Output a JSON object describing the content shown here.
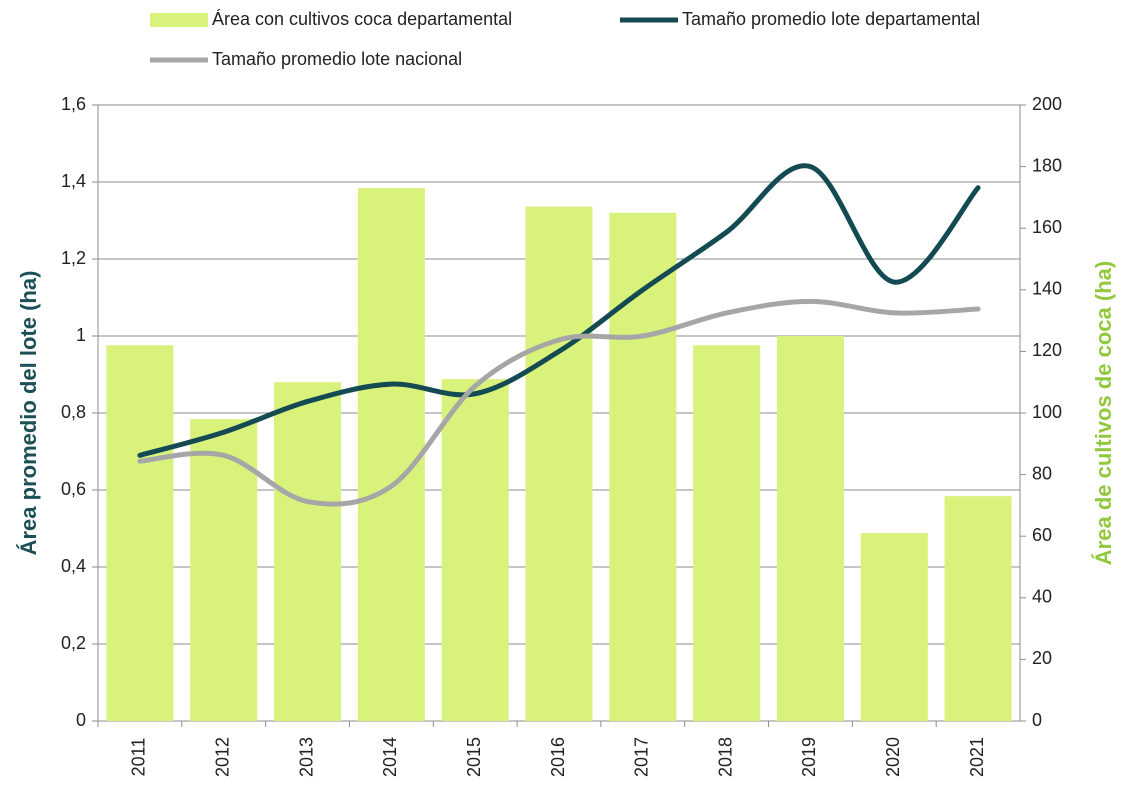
{
  "chart_data": {
    "type": "bar-line",
    "categories": [
      "2011",
      "2012",
      "2013",
      "2014",
      "2015",
      "2016",
      "2017",
      "2018",
      "2019",
      "2020",
      "2021"
    ],
    "series": [
      {
        "name": "Área con cultivos coca departamental",
        "type": "bar",
        "axis": "y2",
        "color": "#d9f27c",
        "values": [
          122,
          98,
          110,
          173,
          111,
          167,
          165,
          122,
          125,
          61,
          73
        ]
      },
      {
        "name": "Tamaño promedio lote departamental",
        "type": "line",
        "axis": "y",
        "color": "#144b53",
        "values": [
          0.69,
          0.75,
          0.83,
          0.875,
          0.85,
          0.96,
          1.12,
          1.27,
          1.44,
          1.14,
          1.385
        ]
      },
      {
        "name": "Tamaño promedio lote nacional",
        "type": "line",
        "axis": "y",
        "color": "#a6a6a6",
        "values": [
          0.675,
          0.69,
          0.57,
          0.61,
          0.87,
          0.99,
          1.0,
          1.06,
          1.09,
          1.06,
          1.07
        ]
      }
    ],
    "y_label": "Área promedio del lote (ha)",
    "y2_label": "Área de cultivos de coca (ha)",
    "ylim": [
      0,
      1.6
    ],
    "yticks": [
      0,
      {
        "value": 0.2,
        "label": "0,2"
      },
      {
        "value": 0.4,
        "label": "0,4"
      },
      {
        "value": 0.6,
        "label": "0,6"
      },
      {
        "value": 0.8,
        "label": "0,8"
      },
      1,
      {
        "value": 1.2,
        "label": "1,2"
      },
      {
        "value": 1.4,
        "label": "1,4"
      },
      {
        "value": 1.6,
        "label": "1,6"
      }
    ],
    "y2lim": [
      0,
      200
    ],
    "y2ticks": [
      0,
      20,
      40,
      60,
      80,
      100,
      120,
      140,
      160,
      180,
      200
    ],
    "grid": true,
    "legend": "top"
  }
}
